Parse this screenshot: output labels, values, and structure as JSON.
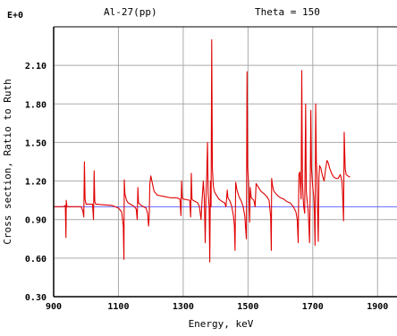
{
  "chart_data": {
    "type": "line",
    "title_left": "Al-27(pp)",
    "title_right": "Theta = 150",
    "exponent_label": "E+0",
    "xlabel": "Energy, keV",
    "ylabel": "Cross section, Ratio to Ruth",
    "xlim": [
      900,
      1960
    ],
    "ylim": [
      0.3,
      2.4
    ],
    "grid": true,
    "x_ticks": [
      900,
      1100,
      1300,
      1500,
      1700,
      1900
    ],
    "x_tick_labels": [
      "900",
      "1100",
      "1300",
      "1500",
      "1700",
      "1900"
    ],
    "y_ticks": [
      0.3,
      0.6,
      0.9,
      1.2,
      1.5,
      1.8,
      2.1
    ],
    "y_tick_labels": [
      "0.30",
      "0.60",
      "0.90",
      "1.20",
      "1.50",
      "1.80",
      "2.10"
    ],
    "colors": {
      "series": "#e00000",
      "reference": "#6666ff",
      "grid": "#aaaaaa",
      "frame": "#000000"
    },
    "series": [
      {
        "color": "#e00000",
        "points": [
          [
            900,
            1.0
          ],
          [
            930,
            1.0
          ],
          [
            936,
            1.01
          ],
          [
            938,
            0.76
          ],
          [
            939,
            1.05
          ],
          [
            941,
            1.0
          ],
          [
            985,
            1.0
          ],
          [
            990,
            0.97
          ],
          [
            993,
            0.92
          ],
          [
            995,
            1.35
          ],
          [
            997,
            1.06
          ],
          [
            1000,
            1.02
          ],
          [
            1020,
            1.02
          ],
          [
            1023,
            0.9
          ],
          [
            1025,
            1.28
          ],
          [
            1027,
            1.04
          ],
          [
            1030,
            1.02
          ],
          [
            1080,
            1.01
          ],
          [
            1090,
            1.0
          ],
          [
            1100,
            0.99
          ],
          [
            1110,
            0.96
          ],
          [
            1115,
            0.85
          ],
          [
            1117,
            0.59
          ],
          [
            1118,
            1.21
          ],
          [
            1120,
            1.1
          ],
          [
            1125,
            1.05
          ],
          [
            1130,
            1.03
          ],
          [
            1150,
            1.0
          ],
          [
            1155,
            0.98
          ],
          [
            1158,
            0.9
          ],
          [
            1160,
            1.15
          ],
          [
            1162,
            1.03
          ],
          [
            1170,
            1.01
          ],
          [
            1185,
            0.99
          ],
          [
            1190,
            0.95
          ],
          [
            1193,
            0.85
          ],
          [
            1195,
            0.92
          ],
          [
            1197,
            1.18
          ],
          [
            1200,
            1.24
          ],
          [
            1205,
            1.18
          ],
          [
            1210,
            1.12
          ],
          [
            1220,
            1.09
          ],
          [
            1240,
            1.08
          ],
          [
            1260,
            1.07
          ],
          [
            1280,
            1.07
          ],
          [
            1290,
            1.06
          ],
          [
            1293,
            0.93
          ],
          [
            1295,
            1.2
          ],
          [
            1297,
            1.07
          ],
          [
            1300,
            1.06
          ],
          [
            1320,
            1.05
          ],
          [
            1323,
            0.92
          ],
          [
            1325,
            1.26
          ],
          [
            1327,
            1.06
          ],
          [
            1330,
            1.05
          ],
          [
            1345,
            1.03
          ],
          [
            1350,
            1.0
          ],
          [
            1355,
            0.9
          ],
          [
            1358,
            1.04
          ],
          [
            1362,
            1.2
          ],
          [
            1365,
            1.08
          ],
          [
            1368,
            0.72
          ],
          [
            1370,
            1.05
          ],
          [
            1373,
            1.28
          ],
          [
            1375,
            1.5
          ],
          [
            1377,
            1.1
          ],
          [
            1380,
            1.0
          ],
          [
            1382,
            0.57
          ],
          [
            1384,
            1.2
          ],
          [
            1386,
            1.0
          ],
          [
            1388,
            2.3
          ],
          [
            1390,
            1.3
          ],
          [
            1393,
            1.16
          ],
          [
            1396,
            1.12
          ],
          [
            1400,
            1.1
          ],
          [
            1405,
            1.08
          ],
          [
            1410,
            1.06
          ],
          [
            1420,
            1.04
          ],
          [
            1428,
            1.03
          ],
          [
            1432,
            1.0
          ],
          [
            1436,
            1.13
          ],
          [
            1438,
            1.07
          ],
          [
            1445,
            1.04
          ],
          [
            1450,
            1.0
          ],
          [
            1455,
            0.93
          ],
          [
            1458,
            0.85
          ],
          [
            1460,
            0.66
          ],
          [
            1462,
            1.19
          ],
          [
            1466,
            1.13
          ],
          [
            1472,
            1.08
          ],
          [
            1480,
            1.04
          ],
          [
            1485,
            1.0
          ],
          [
            1490,
            0.93
          ],
          [
            1493,
            0.82
          ],
          [
            1495,
            0.75
          ],
          [
            1497,
            2.05
          ],
          [
            1499,
            1.3
          ],
          [
            1502,
            1.18
          ],
          [
            1505,
            0.88
          ],
          [
            1507,
            1.15
          ],
          [
            1510,
            1.07
          ],
          [
            1518,
            1.05
          ],
          [
            1522,
            1.0
          ],
          [
            1525,
            1.18
          ],
          [
            1530,
            1.16
          ],
          [
            1540,
            1.12
          ],
          [
            1550,
            1.1
          ],
          [
            1558,
            1.08
          ],
          [
            1565,
            1.05
          ],
          [
            1570,
            0.92
          ],
          [
            1572,
            0.66
          ],
          [
            1573,
            1.22
          ],
          [
            1576,
            1.16
          ],
          [
            1580,
            1.12
          ],
          [
            1590,
            1.09
          ],
          [
            1600,
            1.07
          ],
          [
            1610,
            1.06
          ],
          [
            1620,
            1.04
          ],
          [
            1630,
            1.03
          ],
          [
            1640,
            1.0
          ],
          [
            1648,
            0.96
          ],
          [
            1652,
            0.9
          ],
          [
            1655,
            0.72
          ],
          [
            1657,
            1.25
          ],
          [
            1660,
            1.27
          ],
          [
            1662,
            1.16
          ],
          [
            1664,
            1.06
          ],
          [
            1666,
            2.06
          ],
          [
            1668,
            1.2
          ],
          [
            1670,
            1.08
          ],
          [
            1672,
            1.0
          ],
          [
            1675,
            0.95
          ],
          [
            1678,
            1.8
          ],
          [
            1680,
            1.12
          ],
          [
            1683,
            1.04
          ],
          [
            1686,
            0.96
          ],
          [
            1688,
            0.85
          ],
          [
            1690,
            0.72
          ],
          [
            1692,
            1.12
          ],
          [
            1694,
            1.75
          ],
          [
            1696,
            1.3
          ],
          [
            1698,
            1.22
          ],
          [
            1700,
            1.15
          ],
          [
            1703,
            1.08
          ],
          [
            1705,
            0.95
          ],
          [
            1707,
            0.7
          ],
          [
            1709,
            1.8
          ],
          [
            1711,
            1.35
          ],
          [
            1713,
            1.25
          ],
          [
            1715,
            0.95
          ],
          [
            1717,
            0.73
          ],
          [
            1719,
            1.22
          ],
          [
            1721,
            1.32
          ],
          [
            1725,
            1.3
          ],
          [
            1730,
            1.24
          ],
          [
            1735,
            1.2
          ],
          [
            1740,
            1.3
          ],
          [
            1744,
            1.36
          ],
          [
            1748,
            1.34
          ],
          [
            1752,
            1.3
          ],
          [
            1758,
            1.26
          ],
          [
            1765,
            1.23
          ],
          [
            1772,
            1.22
          ],
          [
            1778,
            1.22
          ],
          [
            1785,
            1.25
          ],
          [
            1790,
            1.2
          ],
          [
            1792,
            1.1
          ],
          [
            1795,
            0.89
          ],
          [
            1797,
            1.58
          ],
          [
            1800,
            1.3
          ],
          [
            1803,
            1.25
          ],
          [
            1808,
            1.24
          ],
          [
            1815,
            1.23
          ]
        ]
      },
      {
        "color": "#6666ff",
        "points": [
          [
            900,
            1.0
          ],
          [
            1960,
            1.0
          ]
        ]
      }
    ]
  }
}
